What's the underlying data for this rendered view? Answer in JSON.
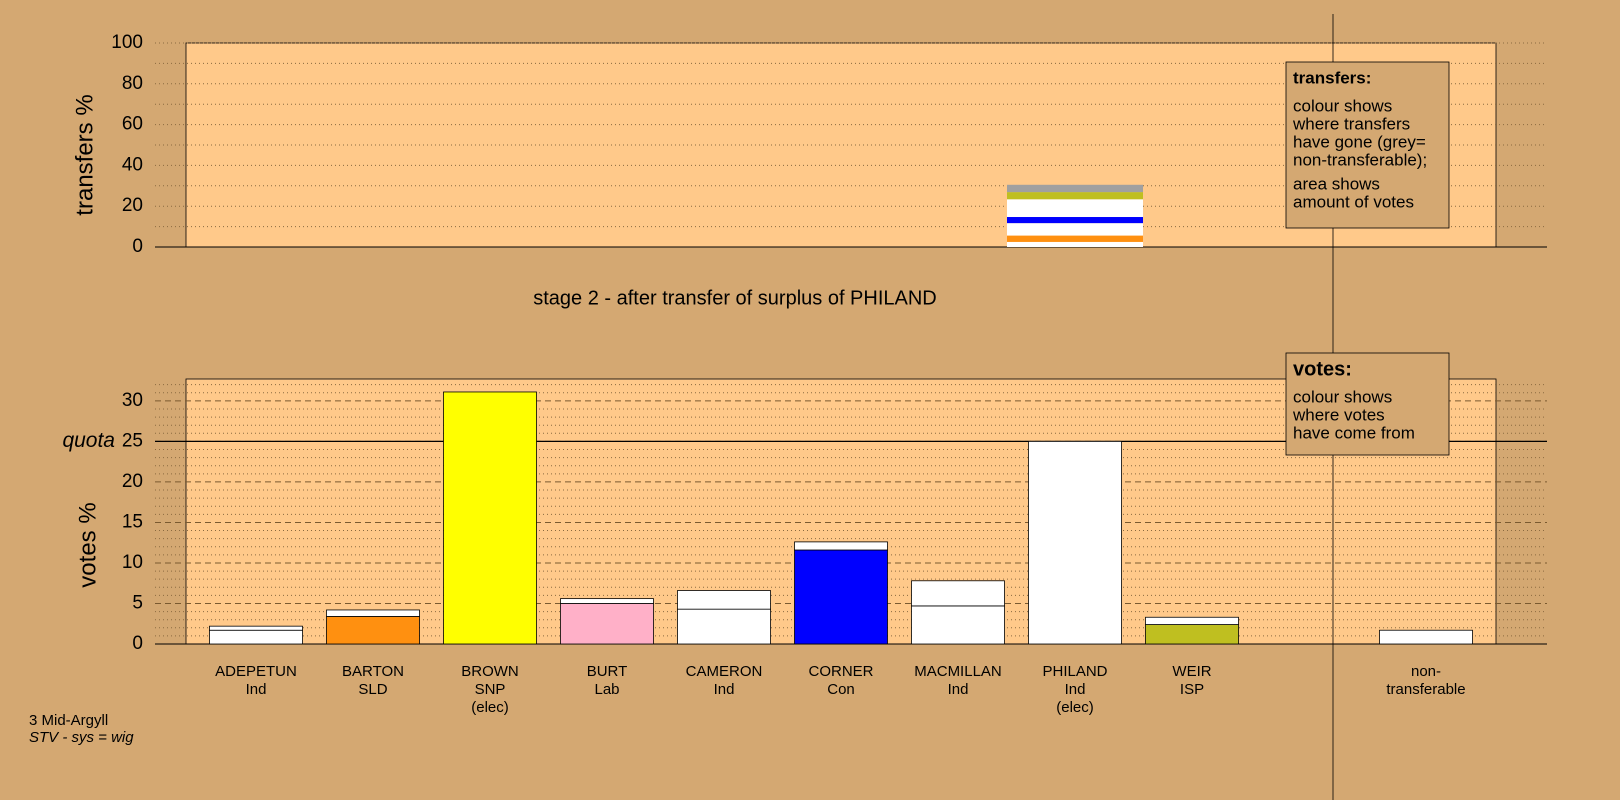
{
  "chart_data": [
    {
      "type": "stacked-bar",
      "y_label": "transfers %",
      "ylim": [
        0,
        100
      ],
      "yticks": [
        0,
        20,
        40,
        60,
        80,
        100
      ],
      "grid": true,
      "segments": [
        {
          "color": "#ffffff",
          "value": 2.5
        },
        {
          "color": "#ff9010",
          "value": 3.1
        },
        {
          "color": "#ffffff",
          "value": 6.1
        },
        {
          "color": "#0000ff",
          "value": 3.0
        },
        {
          "color": "#ffffff",
          "value": 8.7
        },
        {
          "color": "#bfbf20",
          "value": 3.5
        },
        {
          "color": "#a0a0a0",
          "value": 3.6
        }
      ],
      "legend": {
        "title": "transfers:",
        "lines": [
          "colour shows",
          "where transfers",
          "have gone (grey=",
          "non-transferable);"
        ],
        "lines2": [
          "area shows",
          "amount of votes"
        ]
      }
    },
    {
      "type": "bar",
      "title": "stage 2 - after transfer of surplus of PHILAND",
      "y_label": "votes %",
      "ylim": [
        0,
        32.7
      ],
      "yticks": [
        0,
        5,
        10,
        15,
        20,
        25,
        30
      ],
      "grid": true,
      "quota": {
        "label": "quota",
        "value": 25
      },
      "candidates": [
        {
          "label": [
            "ADEPETUN",
            "Ind"
          ],
          "color": "#ffffff",
          "votes": 1.7,
          "transfer": 0.5
        },
        {
          "label": [
            "BARTON",
            "SLD"
          ],
          "color": "#ff9010",
          "votes": 3.4,
          "transfer": 0.8
        },
        {
          "label": [
            "BROWN",
            "SNP",
            "(elec)"
          ],
          "color": "#ffff00",
          "votes": 31.1,
          "transfer": 0
        },
        {
          "label": [
            "BURT",
            "Lab"
          ],
          "color": "#ffb0c8",
          "votes": 5.0,
          "transfer": 0.6
        },
        {
          "label": [
            "CAMERON",
            "Ind"
          ],
          "color": "#ffffff",
          "votes": 4.3,
          "transfer": 2.3
        },
        {
          "label": [
            "CORNER",
            "Con"
          ],
          "color": "#0000ff",
          "votes": 11.6,
          "transfer": 1.0
        },
        {
          "label": [
            "MACMILLAN",
            "Ind"
          ],
          "color": "#ffffff",
          "votes": 4.7,
          "transfer": 3.1
        },
        {
          "label": [
            "PHILAND",
            "Ind",
            "(elec)"
          ],
          "color": "#ffffff",
          "votes": 25.0,
          "transfer": 0
        },
        {
          "label": [
            "WEIR",
            "ISP"
          ],
          "color": "#bfbf20",
          "votes": 2.4,
          "transfer": 0.9
        },
        {
          "label": [
            "non-",
            "transferable"
          ],
          "color": "#ffffff",
          "votes": 0,
          "transfer": 1.7
        }
      ],
      "legend": {
        "title": "votes:",
        "lines": [
          "colour shows",
          "where votes",
          "have come from"
        ]
      }
    }
  ],
  "footer": {
    "constituency": "3 Mid-Argyll",
    "system": "STV - sys = wig"
  }
}
